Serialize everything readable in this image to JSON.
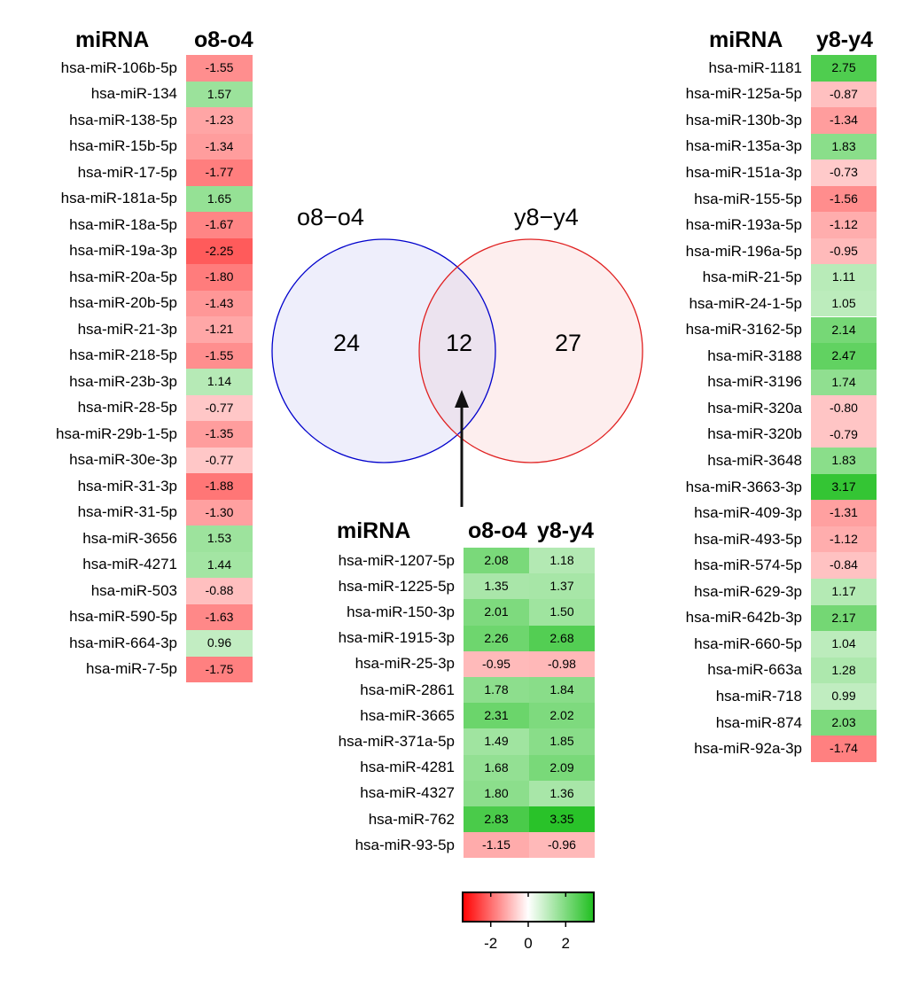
{
  "chart_data": [
    {
      "type": "heatmap",
      "panel": "left",
      "row_header": "miRNA",
      "columns": [
        "o8-o4"
      ],
      "rows": [
        {
          "name": "hsa-miR-106b-5p",
          "values": [
            -1.55
          ],
          "labels": [
            "-1.55"
          ]
        },
        {
          "name": "hsa-miR-134",
          "values": [
            1.57
          ],
          "labels": [
            "1.57"
          ]
        },
        {
          "name": "hsa-miR-138-5p",
          "values": [
            -1.23
          ],
          "labels": [
            "-1.23"
          ]
        },
        {
          "name": "hsa-miR-15b-5p",
          "values": [
            -1.34
          ],
          "labels": [
            "-1.34"
          ]
        },
        {
          "name": "hsa-miR-17-5p",
          "values": [
            -1.77
          ],
          "labels": [
            "-1.77"
          ]
        },
        {
          "name": "hsa-miR-181a-5p",
          "values": [
            1.65
          ],
          "labels": [
            "1.65"
          ]
        },
        {
          "name": "hsa-miR-18a-5p",
          "values": [
            -1.67
          ],
          "labels": [
            "-1.67"
          ]
        },
        {
          "name": "hsa-miR-19a-3p",
          "values": [
            -2.25
          ],
          "labels": [
            "-2.25"
          ]
        },
        {
          "name": "hsa-miR-20a-5p",
          "values": [
            -1.8
          ],
          "labels": [
            "-1.80"
          ]
        },
        {
          "name": "hsa-miR-20b-5p",
          "values": [
            -1.43
          ],
          "labels": [
            "-1.43"
          ]
        },
        {
          "name": "hsa-miR-21-3p",
          "values": [
            -1.21
          ],
          "labels": [
            "-1.21"
          ]
        },
        {
          "name": "hsa-miR-218-5p",
          "values": [
            -1.55
          ],
          "labels": [
            "-1.55"
          ]
        },
        {
          "name": "hsa-miR-23b-3p",
          "values": [
            1.14
          ],
          "labels": [
            "1.14"
          ]
        },
        {
          "name": "hsa-miR-28-5p",
          "values": [
            -0.77
          ],
          "labels": [
            "-0.77"
          ]
        },
        {
          "name": "hsa-miR-29b-1-5p",
          "values": [
            -1.35
          ],
          "labels": [
            "-1.35"
          ]
        },
        {
          "name": "hsa-miR-30e-3p",
          "values": [
            -0.77
          ],
          "labels": [
            "-0.77"
          ]
        },
        {
          "name": "hsa-miR-31-3p",
          "values": [
            -1.88
          ],
          "labels": [
            "-1.88"
          ]
        },
        {
          "name": "hsa-miR-31-5p",
          "values": [
            -1.3
          ],
          "labels": [
            "-1.30"
          ]
        },
        {
          "name": "hsa-miR-3656",
          "values": [
            1.53
          ],
          "labels": [
            "1.53"
          ]
        },
        {
          "name": "hsa-miR-4271",
          "values": [
            1.44
          ],
          "labels": [
            "1.44"
          ]
        },
        {
          "name": "hsa-miR-503",
          "values": [
            -0.88
          ],
          "labels": [
            "-0.88"
          ]
        },
        {
          "name": "hsa-miR-590-5p",
          "values": [
            -1.63
          ],
          "labels": [
            "-1.63"
          ]
        },
        {
          "name": "hsa-miR-664-3p",
          "values": [
            0.96
          ],
          "labels": [
            "0.96"
          ]
        },
        {
          "name": "hsa-miR-7-5p",
          "values": [
            -1.75
          ],
          "labels": [
            "-1.75"
          ]
        }
      ]
    },
    {
      "type": "heatmap",
      "panel": "right",
      "row_header": "miRNA",
      "columns": [
        "y8-y4"
      ],
      "rows": [
        {
          "name": "hsa-miR-1181",
          "values": [
            2.75
          ],
          "labels": [
            "2.75"
          ]
        },
        {
          "name": "hsa-miR-125a-5p",
          "values": [
            -0.87
          ],
          "labels": [
            "-0.87"
          ]
        },
        {
          "name": "hsa-miR-130b-3p",
          "values": [
            -1.34
          ],
          "labels": [
            "-1.34"
          ]
        },
        {
          "name": "hsa-miR-135a-3p",
          "values": [
            1.83
          ],
          "labels": [
            "1.83"
          ]
        },
        {
          "name": "hsa-miR-151a-3p",
          "values": [
            -0.73
          ],
          "labels": [
            "-0.73"
          ]
        },
        {
          "name": "hsa-miR-155-5p",
          "values": [
            -1.56
          ],
          "labels": [
            "-1.56"
          ]
        },
        {
          "name": "hsa-miR-193a-5p",
          "values": [
            -1.12
          ],
          "labels": [
            "-1.12"
          ]
        },
        {
          "name": "hsa-miR-196a-5p",
          "values": [
            -0.95
          ],
          "labels": [
            "-0.95"
          ]
        },
        {
          "name": "hsa-miR-21-5p",
          "values": [
            1.11
          ],
          "labels": [
            "1.11"
          ]
        },
        {
          "name": "hsa-miR-24-1-5p",
          "values": [
            1.05
          ],
          "labels": [
            "1.05"
          ]
        },
        {
          "name": "hsa-miR-3162-5p",
          "values": [
            2.14
          ],
          "labels": [
            "2.14"
          ]
        },
        {
          "name": "hsa-miR-3188",
          "values": [
            2.47
          ],
          "labels": [
            "2.47"
          ]
        },
        {
          "name": "hsa-miR-3196",
          "values": [
            1.74
          ],
          "labels": [
            "1.74"
          ]
        },
        {
          "name": "hsa-miR-320a",
          "values": [
            -0.8
          ],
          "labels": [
            "-0.80"
          ]
        },
        {
          "name": "hsa-miR-320b",
          "values": [
            -0.79
          ],
          "labels": [
            "-0.79"
          ]
        },
        {
          "name": "hsa-miR-3648",
          "values": [
            1.83
          ],
          "labels": [
            "1.83"
          ]
        },
        {
          "name": "hsa-miR-3663-3p",
          "values": [
            3.17
          ],
          "labels": [
            "3.17"
          ]
        },
        {
          "name": "hsa-miR-409-3p",
          "values": [
            -1.31
          ],
          "labels": [
            "-1.31"
          ]
        },
        {
          "name": "hsa-miR-493-5p",
          "values": [
            -1.12
          ],
          "labels": [
            "-1.12"
          ]
        },
        {
          "name": "hsa-miR-574-5p",
          "values": [
            -0.84
          ],
          "labels": [
            "-0.84"
          ]
        },
        {
          "name": "hsa-miR-629-3p",
          "values": [
            1.17
          ],
          "labels": [
            "1.17"
          ]
        },
        {
          "name": "hsa-miR-642b-3p",
          "values": [
            2.17
          ],
          "labels": [
            "2.17"
          ]
        },
        {
          "name": "hsa-miR-660-5p",
          "values": [
            1.04
          ],
          "labels": [
            "1.04"
          ]
        },
        {
          "name": "hsa-miR-663a",
          "values": [
            1.28
          ],
          "labels": [
            "1.28"
          ]
        },
        {
          "name": "hsa-miR-718",
          "values": [
            0.99
          ],
          "labels": [
            "0.99"
          ]
        },
        {
          "name": "hsa-miR-874",
          "values": [
            2.03
          ],
          "labels": [
            "2.03"
          ]
        },
        {
          "name": "hsa-miR-92a-3p",
          "values": [
            -1.74
          ],
          "labels": [
            "-1.74"
          ]
        }
      ]
    },
    {
      "type": "heatmap",
      "panel": "middle",
      "row_header": "miRNA",
      "columns": [
        "o8-o4",
        "y8-y4"
      ],
      "rows": [
        {
          "name": "hsa-miR-1207-5p",
          "values": [
            2.08,
            1.18
          ],
          "labels": [
            "2.08",
            "1.18"
          ]
        },
        {
          "name": "hsa-miR-1225-5p",
          "values": [
            1.35,
            1.37
          ],
          "labels": [
            "1.35",
            "1.37"
          ]
        },
        {
          "name": "hsa-miR-150-3p",
          "values": [
            2.01,
            1.5
          ],
          "labels": [
            "2.01",
            "1.50"
          ]
        },
        {
          "name": "hsa-miR-1915-3p",
          "values": [
            2.26,
            2.68
          ],
          "labels": [
            "2.26",
            "2.68"
          ]
        },
        {
          "name": "hsa-miR-25-3p",
          "values": [
            -0.95,
            -0.98
          ],
          "labels": [
            "-0.95",
            "-0.98"
          ]
        },
        {
          "name": "hsa-miR-2861",
          "values": [
            1.78,
            1.84
          ],
          "labels": [
            "1.78",
            "1.84"
          ]
        },
        {
          "name": "hsa-miR-3665",
          "values": [
            2.31,
            2.02
          ],
          "labels": [
            "2.31",
            "2.02"
          ]
        },
        {
          "name": "hsa-miR-371a-5p",
          "values": [
            1.49,
            1.85
          ],
          "labels": [
            "1.49",
            "1.85"
          ]
        },
        {
          "name": "hsa-miR-4281",
          "values": [
            1.68,
            2.09
          ],
          "labels": [
            "1.68",
            "2.09"
          ]
        },
        {
          "name": "hsa-miR-4327",
          "values": [
            1.8,
            1.36
          ],
          "labels": [
            "1.80",
            "1.36"
          ]
        },
        {
          "name": "hsa-miR-762",
          "values": [
            2.83,
            3.35
          ],
          "labels": [
            "2.83",
            "3.35"
          ]
        },
        {
          "name": "hsa-miR-93-5p",
          "values": [
            -1.15,
            -0.96
          ],
          "labels": [
            "-1.15",
            "-0.96"
          ]
        }
      ]
    },
    {
      "type": "venn",
      "sets": [
        {
          "label": "o8−o4",
          "only_count": "24",
          "color": "#0000cc",
          "fill": "#eeeefb"
        },
        {
          "label": "y8−y4",
          "only_count": "27",
          "color": "#e02020",
          "fill": "#fdeeee"
        }
      ],
      "intersection": {
        "count": "12",
        "fill": "#ece3ef"
      }
    },
    {
      "type": "colorbar",
      "range": [
        -3.5,
        3.5
      ],
      "ticks": [
        -2,
        0,
        2
      ],
      "tick_labels": [
        "-2",
        "0",
        "2"
      ],
      "colors": {
        "low": "#ff0000",
        "mid": "#ffffff",
        "high": "#1fbf1f"
      }
    }
  ]
}
